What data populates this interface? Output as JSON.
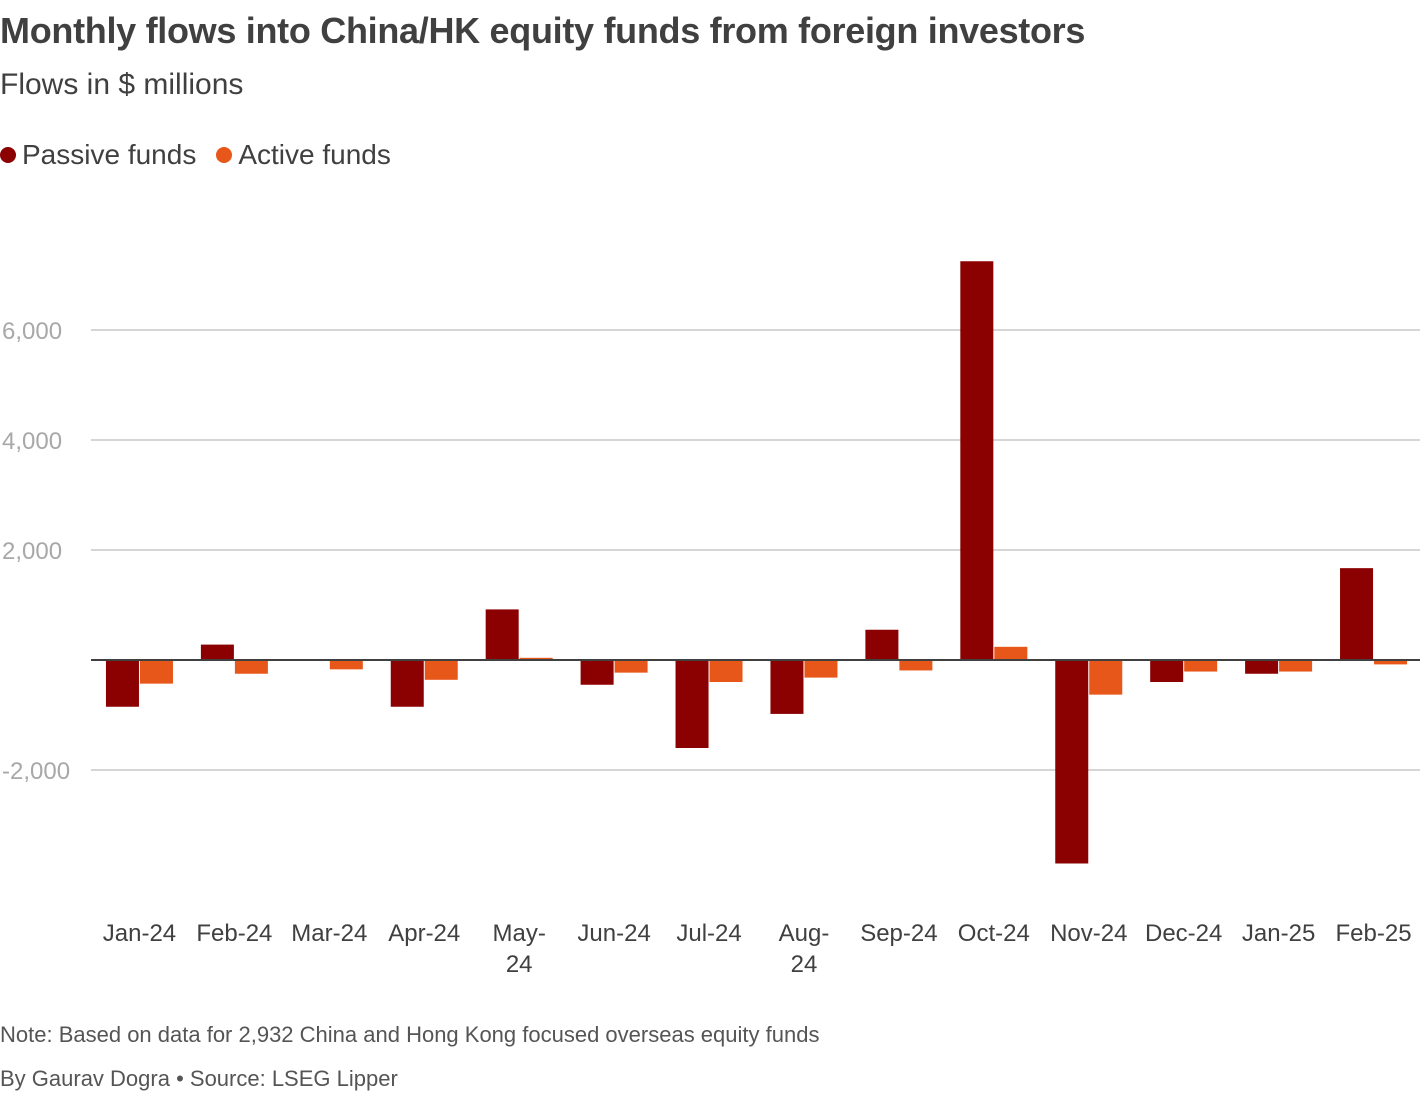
{
  "title": "Monthly flows into China/HK equity funds from foreign investors",
  "subtitle": "Flows in $ millions",
  "note": "Note: Based on data for 2,932 China and Hong Kong focused overseas equity funds",
  "source": "By Gaurav Dogra • Source: LSEG Lipper",
  "colors": {
    "passive": "#8b0000",
    "active": "#e8571a",
    "grid": "#c8c8c8",
    "zero_line": "#404040"
  },
  "chart_data": {
    "type": "bar",
    "categories": [
      [
        "Jan-24"
      ],
      [
        "Feb-24"
      ],
      [
        "Mar-24"
      ],
      [
        "Apr-24"
      ],
      [
        "May-",
        "24"
      ],
      [
        "Jun-24"
      ],
      [
        "Jul-24"
      ],
      [
        "Aug-",
        "24"
      ],
      [
        "Sep-24"
      ],
      [
        "Oct-24"
      ],
      [
        "Nov-24"
      ],
      [
        "Dec-24"
      ],
      [
        "Jan-25"
      ],
      [
        "Feb-25"
      ]
    ],
    "series": [
      {
        "name": "Passive funds",
        "color": "#8b0000",
        "values": [
          -850,
          280,
          0,
          -850,
          920,
          -450,
          -1600,
          -980,
          550,
          7250,
          -3700,
          -400,
          -250,
          1670
        ]
      },
      {
        "name": "Active funds",
        "color": "#e8571a",
        "values": [
          -430,
          -250,
          -170,
          -360,
          40,
          -230,
          -400,
          -320,
          -190,
          240,
          -630,
          -210,
          -210,
          -80
        ]
      }
    ],
    "yticks": [
      -2000,
      2000,
      4000,
      6000
    ],
    "ytick_labels": [
      "-2,000",
      "2,000",
      "4,000",
      "6,000"
    ],
    "ylim": [
      -4300,
      7900
    ],
    "grid": true,
    "legend_position": "top-left"
  }
}
